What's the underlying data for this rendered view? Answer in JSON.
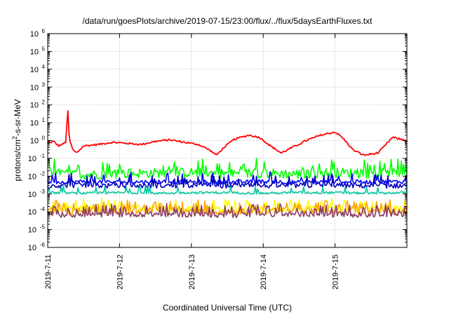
{
  "chart_data": {
    "type": "line",
    "title": "/data/run/goesPlots/archive/2019-07-15/23:00/flux/../flux/5daysEarthFluxes.txt",
    "xlabel": "Coordinated Universal Time (UTC)",
    "ylabel": "protons/cm2-s-sr-MeV",
    "ylabel_parts": {
      "pre": "protons/cm",
      "sup": "2",
      "post": "-s-sr-MeV"
    },
    "xscale": "time (days)",
    "xlim": [
      "2019-07-11",
      "2019-07-16"
    ],
    "yscale": "log",
    "ylim": [
      1e-06,
      1000000.0
    ],
    "grid": true,
    "legend": "none",
    "x_ticks": [
      "2019-7-11",
      "2019-7-12",
      "2019-7-13",
      "2019-7-14",
      "2019-7-15"
    ],
    "y_ticks": [
      {
        "base": "10",
        "exp": "-6"
      },
      {
        "base": "10",
        "exp": "-5"
      },
      {
        "base": "10",
        "exp": "-4"
      },
      {
        "base": "10",
        "exp": "-3"
      },
      {
        "base": "10",
        "exp": "-2"
      },
      {
        "base": "10",
        "exp": "-1"
      },
      {
        "base": "10",
        "exp": "0"
      },
      {
        "base": "10",
        "exp": "1"
      },
      {
        "base": "10",
        "exp": "2"
      },
      {
        "base": "10",
        "exp": "3"
      },
      {
        "base": "10",
        "exp": "4"
      },
      {
        "base": "10",
        "exp": "5"
      },
      {
        "base": "10",
        "exp": "6"
      }
    ],
    "series": [
      {
        "color": "#ff0000",
        "x": [
          "2019-07-11 00:00",
          "2019-07-11 02:00",
          "2019-07-11 03:36",
          "2019-07-11 04:48",
          "2019-07-11 06:00",
          "2019-07-11 06:43",
          "2019-07-11 07:12",
          "2019-07-11 08:24",
          "2019-07-11 09:36",
          "2019-07-11 12:00",
          "2019-07-11 16:48",
          "2019-07-11 21:36",
          "2019-07-12 02:24",
          "2019-07-12 07:12",
          "2019-07-12 12:00",
          "2019-07-12 16:48",
          "2019-07-12 21:36",
          "2019-07-13 02:24",
          "2019-07-13 06:00",
          "2019-07-13 08:24",
          "2019-07-13 10:48",
          "2019-07-13 14:24",
          "2019-07-13 19:12",
          "2019-07-13 22:48",
          "2019-07-14 02:24",
          "2019-07-14 06:00",
          "2019-07-14 09:36",
          "2019-07-14 14:24",
          "2019-07-14 19:12",
          "2019-07-14 23:59",
          "2019-07-15 02:24",
          "2019-07-15 06:00",
          "2019-07-15 09:36",
          "2019-07-15 14:24",
          "2019-07-15 19:12",
          "2019-07-16 00:00"
        ],
        "y": [
          0.7,
          0.9,
          0.5,
          0.6,
          0.8,
          55,
          1.2,
          0.3,
          0.2,
          0.5,
          0.6,
          0.8,
          0.7,
          0.6,
          0.9,
          1.1,
          0.8,
          0.6,
          0.3,
          0.15,
          0.4,
          1.2,
          2.0,
          1.5,
          0.5,
          0.2,
          0.4,
          1.0,
          2.0,
          3.0,
          1.5,
          0.3,
          0.15,
          0.2,
          1.5,
          1.0
        ]
      },
      {
        "color": "#00ff00",
        "x": [
          "2019-07-11 00:00",
          "2019-07-11 12:00",
          "2019-07-12 00:00",
          "2019-07-12 12:00",
          "2019-07-13 00:00",
          "2019-07-13 12:00",
          "2019-07-14 00:00",
          "2019-07-14 12:00",
          "2019-07-15 00:00",
          "2019-07-15 12:00",
          "2019-07-16 00:00"
        ],
        "y": [
          0.015,
          0.012,
          0.014,
          0.015,
          0.016,
          0.014,
          0.015,
          0.013,
          0.016,
          0.014,
          0.015
        ]
      },
      {
        "color": "#0000ff",
        "x": [
          "2019-07-11 00:00",
          "2019-07-11 12:00",
          "2019-07-12 00:00",
          "2019-07-12 12:00",
          "2019-07-13 00:00",
          "2019-07-13 12:00",
          "2019-07-14 00:00",
          "2019-07-14 12:00",
          "2019-07-15 00:00",
          "2019-07-15 12:00",
          "2019-07-16 00:00"
        ],
        "y": [
          0.0045,
          0.005,
          0.0045,
          0.005,
          0.0048,
          0.0046,
          0.005,
          0.0045,
          0.005,
          0.0047,
          0.005
        ]
      },
      {
        "color": "#0000c0",
        "x": [
          "2019-07-11 00:00",
          "2019-07-11 12:00",
          "2019-07-12 00:00",
          "2019-07-12 12:00",
          "2019-07-13 00:00",
          "2019-07-13 12:00",
          "2019-07-14 00:00",
          "2019-07-14 12:00",
          "2019-07-15 00:00",
          "2019-07-15 12:00",
          "2019-07-16 00:00"
        ],
        "y": [
          0.003,
          0.0032,
          0.0028,
          0.003,
          0.0031,
          0.003,
          0.0029,
          0.003,
          0.0031,
          0.0029,
          0.003
        ]
      },
      {
        "color": "#00c8a0",
        "x": [
          "2019-07-11 00:00",
          "2019-07-11 12:00",
          "2019-07-12 00:00",
          "2019-07-12 12:00",
          "2019-07-13 00:00",
          "2019-07-13 12:00",
          "2019-07-14 00:00",
          "2019-07-14 12:00",
          "2019-07-15 00:00",
          "2019-07-15 12:00",
          "2019-07-16 00:00"
        ],
        "y": [
          0.0012,
          0.0011,
          0.0012,
          0.0011,
          0.0012,
          0.0012,
          0.0011,
          0.0012,
          0.0012,
          0.0011,
          0.0012
        ]
      },
      {
        "color": "#ffff00",
        "x": [
          "2019-07-11 00:00",
          "2019-07-11 12:00",
          "2019-07-12 00:00",
          "2019-07-12 12:00",
          "2019-07-13 00:00",
          "2019-07-13 12:00",
          "2019-07-14 00:00",
          "2019-07-14 12:00",
          "2019-07-15 00:00",
          "2019-07-15 12:00",
          "2019-07-16 00:00"
        ],
        "y": [
          0.00015,
          0.00014,
          0.00015,
          0.00016,
          0.00015,
          0.00014,
          0.00015,
          0.00016,
          0.00015,
          0.00014,
          0.00015
        ]
      },
      {
        "color": "#ffa500",
        "x": [
          "2019-07-11 00:00",
          "2019-07-11 12:00",
          "2019-07-12 00:00",
          "2019-07-12 12:00",
          "2019-07-13 00:00",
          "2019-07-13 12:00",
          "2019-07-14 00:00",
          "2019-07-14 12:00",
          "2019-07-15 00:00",
          "2019-07-15 12:00",
          "2019-07-16 00:00"
        ],
        "y": [
          0.00011,
          0.0001,
          0.00011,
          0.00012,
          0.00011,
          0.0001,
          0.00011,
          0.00012,
          0.00011,
          0.0001,
          0.00011
        ]
      },
      {
        "color": "#8b3a62",
        "x": [
          "2019-07-11 00:00",
          "2019-07-11 12:00",
          "2019-07-12 00:00",
          "2019-07-12 12:00",
          "2019-07-13 00:00",
          "2019-07-13 12:00",
          "2019-07-14 00:00",
          "2019-07-14 12:00",
          "2019-07-15 00:00",
          "2019-07-15 12:00",
          "2019-07-16 00:00"
        ],
        "y": [
          7e-05,
          6.5e-05,
          7e-05,
          7.5e-05,
          7e-05,
          6.5e-05,
          7e-05,
          7.5e-05,
          7e-05,
          6.5e-05,
          7e-05
        ]
      }
    ]
  }
}
